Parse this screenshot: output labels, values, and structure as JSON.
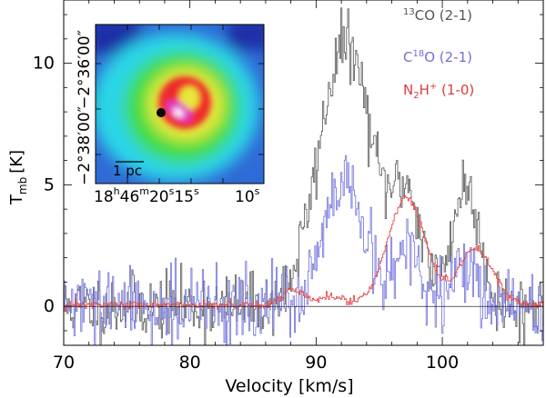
{
  "chart_data": {
    "type": "line",
    "xlabel": "Velocity [km/s]",
    "ylabel_main": "T",
    "ylabel_sub": "mb",
    "ylabel_unit": "[K]",
    "xlim": [
      70,
      108
    ],
    "ylim": [
      -1.6,
      12.6
    ],
    "x_ticks": [
      70,
      80,
      90,
      100
    ],
    "y_ticks": [
      0,
      5,
      10
    ],
    "legend_position": "top-right",
    "series": [
      {
        "name": "13CO (2-1)",
        "legend_pre": "",
        "legend_sup": "13",
        "legend_mid": "CO",
        "legend_sup2": "",
        "legend_tail": " (2-1)",
        "color": "#555555",
        "noise": 0.65,
        "seed": 11,
        "baseline": 0,
        "components": [
          {
            "center": 92.3,
            "amp": 10.8,
            "width": 2.1
          },
          {
            "center": 97.2,
            "amp": 4.3,
            "width": 1.2
          },
          {
            "center": 101.8,
            "amp": 4.9,
            "width": 1.1
          }
        ]
      },
      {
        "name": "C18O (2-1)",
        "legend_pre": "C",
        "legend_sup": "18",
        "legend_mid": "O",
        "legend_sup2": "",
        "legend_tail": " (2-1)",
        "color": "#6f6fdc",
        "noise": 0.75,
        "seed": 29,
        "baseline": 0,
        "components": [
          {
            "center": 92.2,
            "amp": 4.9,
            "width": 1.6
          },
          {
            "center": 97.2,
            "amp": 2.3,
            "width": 1.0
          },
          {
            "center": 101.8,
            "amp": 1.8,
            "width": 0.9
          }
        ]
      },
      {
        "name": "N2H+ (1-0)",
        "legend_pre": "N",
        "legend_sub": "2",
        "legend_mid": "H",
        "legend_sup2": "+",
        "legend_tail": " (1-0)",
        "color": "#e03a3a",
        "noise": 0.08,
        "seed": 47,
        "baseline": 0.05,
        "components": [
          {
            "center": 88.2,
            "amp": 0.65,
            "width": 0.9
          },
          {
            "center": 91.2,
            "amp": 0.35,
            "width": 0.9
          },
          {
            "center": 97.1,
            "amp": 4.4,
            "width": 1.5
          },
          {
            "center": 102.6,
            "amp": 2.3,
            "width": 1.4
          }
        ]
      }
    ]
  },
  "inset": {
    "dec_labels": [
      "−2°38′00″",
      "−2°36′00″"
    ],
    "ra_label_h": "18",
    "ra_label_m": "46",
    "ra_label_s1": "20",
    "ra_label_s2": "15",
    "ra_label_s3": "10",
    "scale_bar_label": "1 pc",
    "colors": {
      "background_blue": "#2f6bd6",
      "cyan": "#2cd6e8",
      "green": "#3fdc3f",
      "yellow": "#e8e83a",
      "red": "#ee2a2a",
      "magenta": "#e23ac8",
      "white": "#ffffff"
    }
  }
}
